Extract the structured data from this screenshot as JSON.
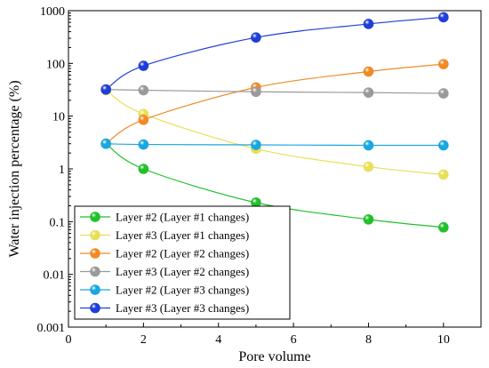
{
  "chart_data": {
    "type": "line",
    "xlabel": "Pore volume",
    "ylabel": "Water injection percentage (%)",
    "xlim": [
      0,
      11
    ],
    "ylim": [
      0.001,
      1000
    ],
    "yscale": "log",
    "x_ticks": [
      "0",
      "2",
      "4",
      "6",
      "8",
      "10"
    ],
    "y_ticks": [
      "0.001",
      "0.01",
      "0.1",
      "1",
      "10",
      "100",
      "1000"
    ],
    "legend_position": "bottom-left",
    "grid": false,
    "series": [
      {
        "name": "Layer #2 (Layer #1 changes)",
        "color": "#22c02a",
        "x": [
          1,
          2,
          5,
          8,
          10
        ],
        "y": [
          3,
          1,
          0.23,
          0.11,
          0.078
        ]
      },
      {
        "name": "Layer #3 (Layer #1 changes)",
        "color": "#e8e05a",
        "x": [
          1,
          2,
          5,
          8,
          10
        ],
        "y": [
          31,
          11,
          2.4,
          1.1,
          0.78
        ]
      },
      {
        "name": "Layer #2 (Layer #2 changes)",
        "color": "#f08a28",
        "x": [
          1,
          2,
          5,
          8,
          10
        ],
        "y": [
          3,
          8.5,
          35,
          70,
          97
        ]
      },
      {
        "name": "Layer #3 (Layer #2 changes)",
        "color": "#9a9a9a",
        "x": [
          1,
          2,
          5,
          8,
          10
        ],
        "y": [
          32,
          31,
          29,
          28,
          27
        ]
      },
      {
        "name": "Layer #2 (Layer #3 changes)",
        "color": "#1aa7e0",
        "x": [
          1,
          2,
          5,
          8,
          10
        ],
        "y": [
          3,
          2.9,
          2.85,
          2.8,
          2.8
        ]
      },
      {
        "name": "Layer #3 (Layer #3 changes)",
        "color": "#1f3ed6",
        "x": [
          1,
          2,
          5,
          8,
          10
        ],
        "y": [
          32,
          90,
          310,
          560,
          750
        ]
      }
    ]
  }
}
